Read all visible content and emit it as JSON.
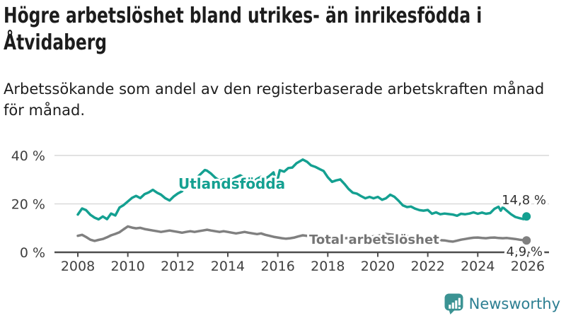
{
  "header": {
    "title_lines": [
      "Högre arbetslöshet bland utrikes- än inrikesfödda i",
      "Åtvidaberg"
    ],
    "subtitle_lines": [
      "Arbetssökande som andel av den registerbaserade arbetskraften månad",
      "för månad."
    ]
  },
  "branding": {
    "label": "Newsworthy",
    "icon": "newsworthy-bubble-barchart-icon",
    "icon_color": "#3b9393",
    "text_color": "#2d7f92"
  },
  "colors": {
    "foreign_born_line": "#14a091",
    "total_line": "#808080",
    "gridline": "#d9d9d9",
    "axis": "#4d4d4d",
    "tick_text": "#404040",
    "value_text": "#333333"
  },
  "chart_data": {
    "type": "line",
    "unit": "percent",
    "grid": "horizontal",
    "legend_position": "inline-on-lines",
    "x_ticks": [
      2008,
      2010,
      2012,
      2014,
      2016,
      2018,
      2020,
      2022,
      2024,
      2026
    ],
    "y_ticks": [
      {
        "label": "0 %",
        "value": 0
      },
      {
        "label": "20 %",
        "value": 20
      },
      {
        "label": "40 %",
        "value": 40
      }
    ],
    "ylim": [
      0,
      40
    ],
    "x_range_years": [
      2008,
      2026
    ],
    "series": [
      {
        "name": "Utlandsfödda",
        "color": "#14a091",
        "end_label": "14,8 %",
        "end_value": 14.8,
        "points": [
          [
            2008.0,
            15.6
          ],
          [
            2008.17,
            18.1
          ],
          [
            2008.33,
            17.4
          ],
          [
            2008.5,
            15.5
          ],
          [
            2008.67,
            14.3
          ],
          [
            2008.83,
            13.6
          ],
          [
            2009.0,
            14.8
          ],
          [
            2009.17,
            13.7
          ],
          [
            2009.33,
            16.0
          ],
          [
            2009.5,
            15.2
          ],
          [
            2009.67,
            18.5
          ],
          [
            2009.83,
            19.5
          ],
          [
            2010.0,
            21.0
          ],
          [
            2010.17,
            22.5
          ],
          [
            2010.33,
            23.3
          ],
          [
            2010.5,
            22.4
          ],
          [
            2010.67,
            24.0
          ],
          [
            2010.83,
            24.7
          ],
          [
            2011.0,
            25.8
          ],
          [
            2011.17,
            24.6
          ],
          [
            2011.33,
            23.8
          ],
          [
            2011.5,
            22.3
          ],
          [
            2011.67,
            21.4
          ],
          [
            2011.83,
            23.0
          ],
          [
            2012.0,
            24.3
          ],
          [
            2012.17,
            25.2
          ],
          [
            2012.33,
            28.1
          ],
          [
            2012.5,
            30.1
          ],
          [
            2012.67,
            29.0
          ],
          [
            2012.83,
            31.5
          ],
          [
            2013.08,
            34.0
          ],
          [
            2013.17,
            33.7
          ],
          [
            2013.33,
            32.5
          ],
          [
            2013.5,
            30.8
          ],
          [
            2013.67,
            29.6
          ],
          [
            2013.83,
            30.2
          ],
          [
            2014.0,
            29.3
          ],
          [
            2014.17,
            30.0
          ],
          [
            2014.33,
            31.0
          ],
          [
            2014.5,
            31.8
          ],
          [
            2014.67,
            30.8
          ],
          [
            2014.83,
            29.8
          ],
          [
            2015.0,
            29.2
          ],
          [
            2015.17,
            30.3
          ],
          [
            2015.33,
            31.2
          ],
          [
            2015.5,
            30.4
          ],
          [
            2015.67,
            31.6
          ],
          [
            2015.83,
            33.0
          ],
          [
            2015.95,
            28.2
          ],
          [
            2016.08,
            33.9
          ],
          [
            2016.25,
            33.3
          ],
          [
            2016.42,
            34.8
          ],
          [
            2016.58,
            35.0
          ],
          [
            2016.75,
            36.8
          ],
          [
            2016.92,
            37.8
          ],
          [
            2017.0,
            38.3
          ],
          [
            2017.17,
            37.4
          ],
          [
            2017.33,
            35.9
          ],
          [
            2017.5,
            35.3
          ],
          [
            2017.67,
            34.4
          ],
          [
            2017.83,
            33.6
          ],
          [
            2018.0,
            31.0
          ],
          [
            2018.17,
            29.1
          ],
          [
            2018.33,
            29.7
          ],
          [
            2018.5,
            30.1
          ],
          [
            2018.67,
            28.2
          ],
          [
            2018.83,
            26.2
          ],
          [
            2019.0,
            24.6
          ],
          [
            2019.17,
            24.2
          ],
          [
            2019.33,
            23.2
          ],
          [
            2019.5,
            22.3
          ],
          [
            2019.67,
            22.9
          ],
          [
            2019.83,
            22.3
          ],
          [
            2020.0,
            22.9
          ],
          [
            2020.17,
            21.7
          ],
          [
            2020.33,
            22.3
          ],
          [
            2020.5,
            23.8
          ],
          [
            2020.67,
            22.9
          ],
          [
            2020.83,
            21.3
          ],
          [
            2021.0,
            19.4
          ],
          [
            2021.17,
            18.7
          ],
          [
            2021.33,
            18.9
          ],
          [
            2021.5,
            18.0
          ],
          [
            2021.67,
            17.4
          ],
          [
            2021.83,
            17.2
          ],
          [
            2022.0,
            17.5
          ],
          [
            2022.17,
            15.9
          ],
          [
            2022.33,
            16.5
          ],
          [
            2022.5,
            15.7
          ],
          [
            2022.67,
            16.0
          ],
          [
            2022.83,
            15.8
          ],
          [
            2023.0,
            15.6
          ],
          [
            2023.17,
            15.1
          ],
          [
            2023.33,
            15.9
          ],
          [
            2023.5,
            15.7
          ],
          [
            2023.67,
            16.0
          ],
          [
            2023.83,
            16.5
          ],
          [
            2024.0,
            15.9
          ],
          [
            2024.17,
            16.4
          ],
          [
            2024.33,
            15.9
          ],
          [
            2024.5,
            16.2
          ],
          [
            2024.67,
            18.0
          ],
          [
            2024.83,
            18.8
          ],
          [
            2024.92,
            17.2
          ],
          [
            2025.0,
            18.6
          ],
          [
            2025.17,
            17.1
          ],
          [
            2025.33,
            15.7
          ],
          [
            2025.5,
            14.6
          ],
          [
            2025.67,
            14.1
          ],
          [
            2025.83,
            13.7
          ],
          [
            2025.95,
            14.8
          ]
        ]
      },
      {
        "name": "Total arbetslöshet",
        "color": "#808080",
        "end_label": "4,9 %",
        "end_value": 4.9,
        "points": [
          [
            2008.0,
            6.8
          ],
          [
            2008.17,
            7.2
          ],
          [
            2008.33,
            6.3
          ],
          [
            2008.5,
            5.2
          ],
          [
            2008.67,
            4.7
          ],
          [
            2008.83,
            5.1
          ],
          [
            2009.0,
            5.5
          ],
          [
            2009.17,
            6.2
          ],
          [
            2009.33,
            7.0
          ],
          [
            2009.5,
            7.6
          ],
          [
            2009.67,
            8.3
          ],
          [
            2009.83,
            9.5
          ],
          [
            2010.0,
            10.7
          ],
          [
            2010.17,
            10.2
          ],
          [
            2010.33,
            9.9
          ],
          [
            2010.5,
            10.1
          ],
          [
            2010.67,
            9.6
          ],
          [
            2010.83,
            9.3
          ],
          [
            2011.0,
            9.0
          ],
          [
            2011.17,
            8.7
          ],
          [
            2011.33,
            8.4
          ],
          [
            2011.5,
            8.7
          ],
          [
            2011.67,
            9.0
          ],
          [
            2011.83,
            8.7
          ],
          [
            2012.0,
            8.4
          ],
          [
            2012.17,
            8.1
          ],
          [
            2012.33,
            8.4
          ],
          [
            2012.5,
            8.7
          ],
          [
            2012.67,
            8.4
          ],
          [
            2012.83,
            8.7
          ],
          [
            2013.0,
            9.0
          ],
          [
            2013.17,
            9.3
          ],
          [
            2013.33,
            9.0
          ],
          [
            2013.5,
            8.7
          ],
          [
            2013.67,
            8.4
          ],
          [
            2013.83,
            8.7
          ],
          [
            2014.0,
            8.4
          ],
          [
            2014.17,
            8.1
          ],
          [
            2014.33,
            7.8
          ],
          [
            2014.5,
            8.1
          ],
          [
            2014.67,
            8.4
          ],
          [
            2014.83,
            8.1
          ],
          [
            2015.0,
            7.8
          ],
          [
            2015.17,
            7.5
          ],
          [
            2015.33,
            7.8
          ],
          [
            2015.5,
            7.2
          ],
          [
            2015.67,
            6.8
          ],
          [
            2015.83,
            6.4
          ],
          [
            2016.0,
            6.1
          ],
          [
            2016.17,
            5.8
          ],
          [
            2016.33,
            5.6
          ],
          [
            2016.5,
            5.8
          ],
          [
            2016.67,
            6.1
          ],
          [
            2016.83,
            6.6
          ],
          [
            2017.0,
            7.0
          ],
          [
            2017.17,
            6.8
          ],
          [
            2017.33,
            6.6
          ],
          [
            2017.5,
            6.4
          ],
          [
            2017.67,
            6.3
          ],
          [
            2017.83,
            6.4
          ],
          [
            2018.0,
            6.2
          ],
          [
            2018.17,
            6.0
          ],
          [
            2018.33,
            6.1
          ],
          [
            2018.5,
            5.9
          ],
          [
            2018.67,
            5.8
          ],
          [
            2018.83,
            5.9
          ],
          [
            2019.0,
            6.0
          ],
          [
            2019.17,
            6.2
          ],
          [
            2019.33,
            6.4
          ],
          [
            2019.5,
            6.6
          ],
          [
            2019.67,
            6.4
          ],
          [
            2019.83,
            6.6
          ],
          [
            2020.0,
            6.8
          ],
          [
            2020.17,
            7.2
          ],
          [
            2020.33,
            7.6
          ],
          [
            2020.5,
            7.4
          ],
          [
            2020.67,
            7.2
          ],
          [
            2020.83,
            7.0
          ],
          [
            2021.0,
            6.8
          ],
          [
            2021.17,
            6.6
          ],
          [
            2021.33,
            6.4
          ],
          [
            2021.5,
            6.2
          ],
          [
            2021.67,
            6.0
          ],
          [
            2021.83,
            5.8
          ],
          [
            2022.0,
            5.6
          ],
          [
            2022.17,
            5.4
          ],
          [
            2022.33,
            5.2
          ],
          [
            2022.5,
            5.0
          ],
          [
            2022.67,
            4.9
          ],
          [
            2022.83,
            4.6
          ],
          [
            2023.0,
            4.4
          ],
          [
            2023.17,
            4.8
          ],
          [
            2023.33,
            5.2
          ],
          [
            2023.5,
            5.5
          ],
          [
            2023.67,
            5.8
          ],
          [
            2023.83,
            6.0
          ],
          [
            2024.0,
            6.1
          ],
          [
            2024.17,
            5.9
          ],
          [
            2024.33,
            5.8
          ],
          [
            2024.5,
            6.0
          ],
          [
            2024.67,
            6.1
          ],
          [
            2024.83,
            5.9
          ],
          [
            2025.0,
            5.8
          ],
          [
            2025.17,
            5.9
          ],
          [
            2025.33,
            5.7
          ],
          [
            2025.5,
            5.5
          ],
          [
            2025.67,
            5.2
          ],
          [
            2025.83,
            5.0
          ],
          [
            2025.95,
            4.9
          ]
        ]
      }
    ]
  }
}
